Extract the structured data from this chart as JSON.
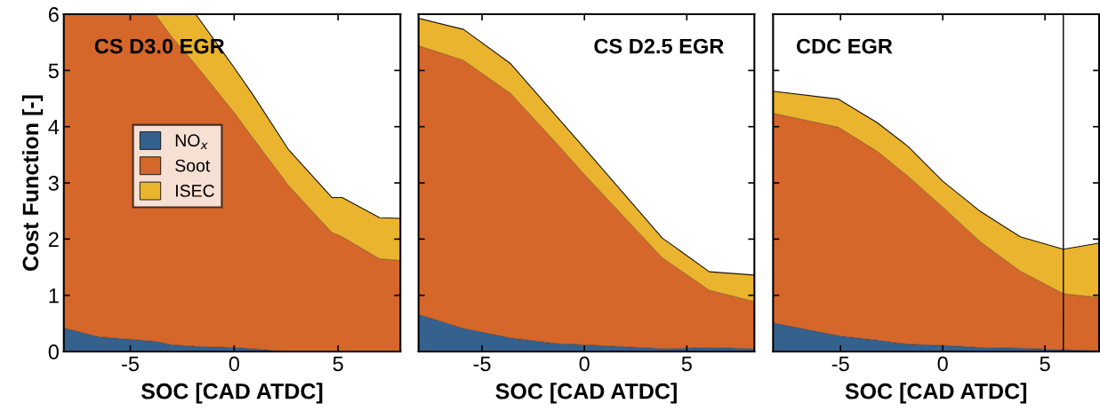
{
  "chart_data": [
    {
      "type": "area",
      "stacked": true,
      "title": "CS D3.0 EGR",
      "xlabel": "SOC [CAD ATDC]",
      "ylabel": "Cost Function [-]",
      "legend": "center left",
      "x": [
        -8.2,
        -6.5,
        -3.8,
        -3.0,
        -1.85,
        0,
        0.9,
        2.6,
        4.7,
        5.2,
        7.0,
        8.0
      ],
      "series": [
        {
          "name": "NO$_{x}$",
          "color": "#34618d",
          "values": [
            0.42,
            0.26,
            0.18,
            0.12,
            0.09,
            0.07,
            0.05,
            0,
            0,
            0,
            0,
            0
          ]
        },
        {
          "name": "Soot",
          "color": "#d6672a",
          "values": [
            5.58,
            5.74,
            5.82,
            5.48,
            5.01,
            4.18,
            3.75,
            2.96,
            2.12,
            2.04,
            1.65,
            1.62
          ]
        },
        {
          "name": "ISEC",
          "color": "#ebb42e",
          "values": [
            0,
            0,
            0,
            0.4,
            0.9,
            0.8,
            0.77,
            0.64,
            0.62,
            0.7,
            0.73,
            0.75
          ]
        }
      ],
      "xlim": [
        -8.2,
        8.0
      ],
      "ylim": [
        0,
        6
      ],
      "xticks": [
        -5,
        0,
        5
      ],
      "yticks": [
        0,
        1,
        2,
        3,
        4,
        5,
        6
      ]
    },
    {
      "type": "area",
      "stacked": true,
      "title": "CS D2.5 EGR",
      "xlabel": "SOC [CAD ATDC]",
      "tick_labels": "x",
      "x": [
        -8.1,
        -5.9,
        -3.6,
        -1.3,
        0,
        3.8,
        6.1,
        8.3
      ],
      "series": [
        {
          "color": "#34618d",
          "values": [
            0.66,
            0.41,
            0.24,
            0.14,
            0.12,
            0.05,
            0.07,
            0.05
          ]
        },
        {
          "color": "#d6672a",
          "values": [
            4.78,
            4.77,
            4.35,
            3.54,
            3.03,
            1.62,
            1.02,
            0.84
          ]
        },
        {
          "color": "#ebb42e",
          "values": [
            0.49,
            0.55,
            0.53,
            0.48,
            0.47,
            0.35,
            0.33,
            0.47
          ]
        }
      ],
      "xlim": [
        -8.1,
        8.3
      ],
      "ylim": [
        0,
        6
      ],
      "xticks": [
        -5,
        0,
        5
      ],
      "yticks": [
        0,
        1,
        2,
        3,
        4,
        5,
        6
      ]
    },
    {
      "type": "area",
      "stacked": true,
      "title": "CDC EGR",
      "xlabel": "SOC [CAD ATDC]",
      "tick_labels": "x",
      "x": [
        -8.3,
        -5.1,
        -3.2,
        -1.7,
        0,
        1.85,
        3.8,
        5.9,
        7.65
      ],
      "series": [
        {
          "color": "#34618d",
          "values": [
            0.51,
            0.28,
            0.2,
            0.13,
            0.11,
            0.07,
            0.06,
            0.03,
            0.02
          ]
        },
        {
          "color": "#d6672a",
          "values": [
            3.73,
            3.71,
            3.36,
            2.99,
            2.46,
            1.88,
            1.37,
            1.0,
            0.94
          ]
        },
        {
          "color": "#ebb42e",
          "values": [
            0.39,
            0.5,
            0.51,
            0.53,
            0.46,
            0.54,
            0.61,
            0.79,
            0.97
          ]
        }
      ],
      "ref_lines": [
        {
          "axis": "x",
          "value": 5.9,
          "color": "#000000"
        }
      ],
      "xlim": [
        -8.3,
        7.65
      ],
      "ylim": [
        0,
        6
      ],
      "xticks": [
        -5,
        0,
        5
      ],
      "yticks": [
        0,
        1,
        2,
        3,
        4,
        5,
        6
      ]
    }
  ]
}
